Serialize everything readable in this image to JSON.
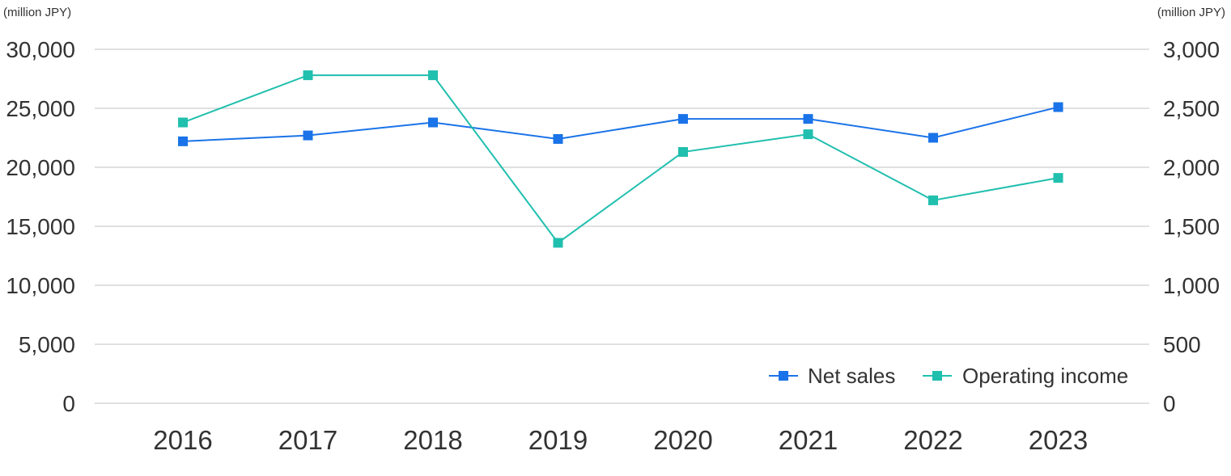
{
  "chart_data": {
    "type": "line",
    "categories": [
      "2016",
      "2017",
      "2018",
      "2019",
      "2020",
      "2021",
      "2022",
      "2023"
    ],
    "y_left": {
      "unit_label": "(million JPY)",
      "range": [
        0,
        30000
      ],
      "ticks": [
        0,
        5000,
        10000,
        15000,
        20000,
        25000,
        30000
      ],
      "tick_labels": [
        "0",
        "5,000",
        "10,000",
        "15,000",
        "20,000",
        "25,000",
        "30,000"
      ]
    },
    "y_right": {
      "unit_label": "(million JPY)",
      "range": [
        0,
        3000
      ],
      "ticks": [
        0,
        500,
        1000,
        1500,
        2000,
        2500,
        3000
      ],
      "tick_labels": [
        "0",
        "500",
        "1,000",
        "1,500",
        "2,000",
        "2,500",
        "3,000"
      ]
    },
    "grid": true,
    "legend_position": "bottom-right",
    "series": [
      {
        "name": "Net sales",
        "axis": "left",
        "color": "#1a73e8",
        "marker": "square",
        "values": [
          22200,
          22700,
          23800,
          22400,
          24100,
          24100,
          22500,
          25100
        ]
      },
      {
        "name": "Operating income",
        "axis": "right",
        "color": "#20bfae",
        "marker": "square",
        "values": [
          2380,
          2780,
          2780,
          1360,
          2130,
          2280,
          1720,
          1910
        ]
      }
    ]
  }
}
